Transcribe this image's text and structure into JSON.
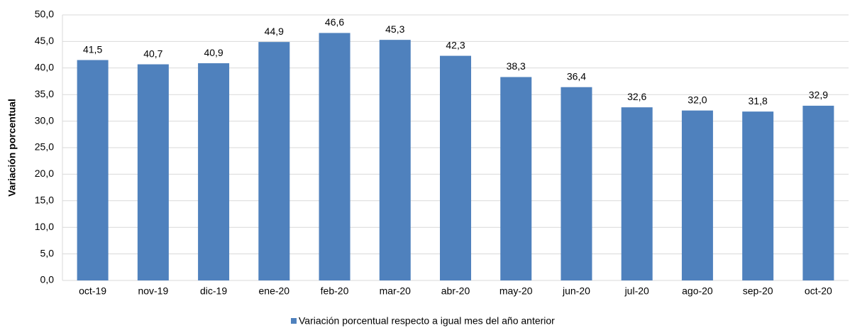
{
  "chart_data": {
    "type": "bar",
    "y_label": "Variación porcentual",
    "categories": [
      "oct-19",
      "nov-19",
      "dic-19",
      "ene-20",
      "feb-20",
      "mar-20",
      "abr-20",
      "may-20",
      "jun-20",
      "jul-20",
      "ago-20",
      "sep-20",
      "oct-20"
    ],
    "series": [
      {
        "name": "Variación porcentual respecto a igual mes del año anterior",
        "color": "#4f81bd",
        "values": [
          41.5,
          40.7,
          40.9,
          44.9,
          46.6,
          45.3,
          42.3,
          38.3,
          36.4,
          32.6,
          32.0,
          31.8,
          32.9
        ],
        "value_labels": [
          "41,5",
          "40,7",
          "40,9",
          "44,9",
          "46,6",
          "45,3",
          "42,3",
          "38,3",
          "36,4",
          "32,6",
          "32,0",
          "31,8",
          "32,9"
        ]
      }
    ],
    "ylim": [
      0,
      50
    ],
    "yticks": [
      {
        "value": 0,
        "label": "0,0"
      },
      {
        "value": 5,
        "label": "5,0"
      },
      {
        "value": 10,
        "label": "10,0"
      },
      {
        "value": 15,
        "label": "15,0"
      },
      {
        "value": 20,
        "label": "20,0"
      },
      {
        "value": 25,
        "label": "25,0"
      },
      {
        "value": 30,
        "label": "30,0"
      },
      {
        "value": 35,
        "label": "35,0"
      },
      {
        "value": 40,
        "label": "40,0"
      },
      {
        "value": 45,
        "label": "45,0"
      },
      {
        "value": 50,
        "label": "50,0"
      }
    ],
    "grid": true,
    "legend": "bottom"
  }
}
